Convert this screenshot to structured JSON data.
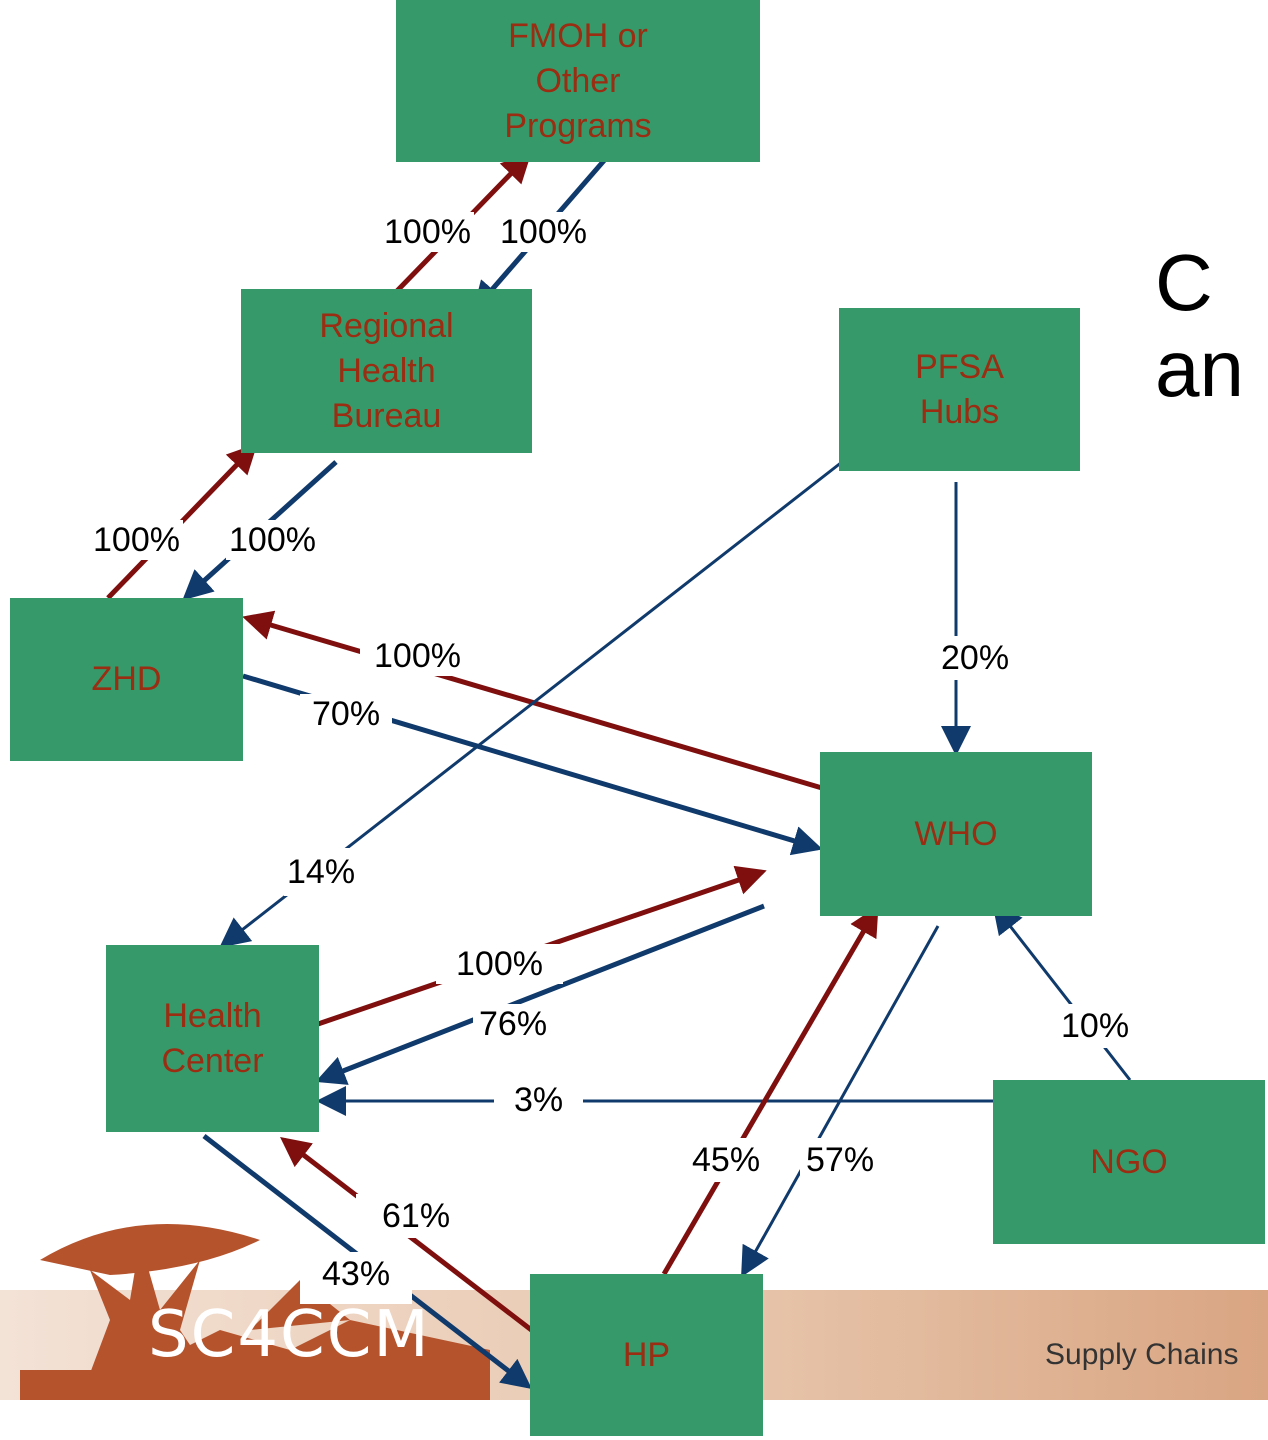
{
  "nodes": {
    "fmoh": "FMOH or\nOther\nPrograms",
    "rhb": "Regional\nHealth\nBureau",
    "pfsa": "PFSA\nHubs",
    "zhd": "ZHD",
    "who": "WHO",
    "hc": "Health\nCenter",
    "ngo": "NGO",
    "hp": "HP"
  },
  "edge_labels": {
    "rhb_to_fmoh": "100%",
    "fmoh_to_rhb": "100%",
    "zhd_to_rhb": "100%",
    "rhb_to_zhd": "100%",
    "who_to_zhd": "100%",
    "zhd_to_who": "70%",
    "pfsa_to_who": "20%",
    "pfsa_to_hc": "14%",
    "hc_to_who": "100%",
    "who_to_hc": "76%",
    "ngo_to_who": "10%",
    "ngo_to_hc": "3%",
    "hp_to_who": "45%",
    "who_to_hp": "57%",
    "hp_to_hc": "61%",
    "hc_to_hp": "43%"
  },
  "side_title": "C\nan",
  "footer": {
    "logo": "SC4CCM",
    "tagline": "Supply Chains"
  },
  "colors": {
    "node_fill": "#36996a",
    "node_text": "#9a2d12",
    "report_arrow": "#7f0f0f",
    "supply_arrow": "#0f3a6b"
  }
}
